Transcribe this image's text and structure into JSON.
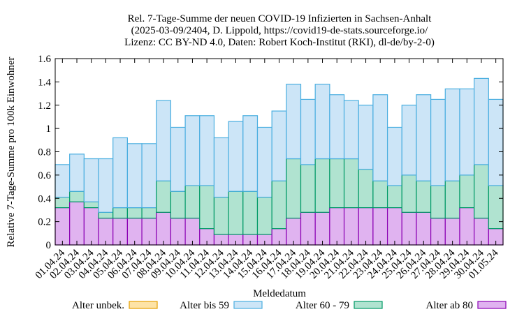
{
  "chart_data": {
    "type": "bar",
    "stacked": true,
    "title": [
      "Rel. 7-Tage-Summe der neuen COVID-19 Infizierten in Sachsen-Anhalt",
      "(2025-03-09/2404, D. Lippold, https://covid19-de-stats.sourceforge.io/",
      "Lizenz: CC BY-ND 4.0, Daten: Robert Koch-Institut (RKI), dl-de/by-2-0)"
    ],
    "xlabel": "Meldedatum",
    "ylabel": "Relative 7-Tage-Summe pro 100k Einwohner",
    "ylim": [
      0,
      1.6
    ],
    "yticks": [
      "0",
      "0.2",
      "0.4",
      "0.6",
      "0.8",
      "1",
      "1.2",
      "1.4",
      "1.6"
    ],
    "grid": false,
    "legend_position": "bottom",
    "categories": [
      "01.04.24",
      "02.04.24",
      "03.04.24",
      "04.04.24",
      "05.04.24",
      "06.04.24",
      "07.04.24",
      "08.04.24",
      "09.04.24",
      "10.04.24",
      "11.04.24",
      "12.04.24",
      "13.04.24",
      "14.04.24",
      "15.04.24",
      "16.04.24",
      "17.04.24",
      "18.04.24",
      "19.04.24",
      "20.04.24",
      "21.04.24",
      "22.04.24",
      "23.04.24",
      "24.04.24",
      "25.04.24",
      "26.04.24",
      "27.04.24",
      "28.04.24",
      "29.04.24",
      "30.04.24",
      "01.05.24"
    ],
    "series": [
      {
        "name": "Alter ab 80",
        "fill": "#e0b3f0",
        "stroke": "#8b00b3",
        "values": [
          0.32,
          0.37,
          0.32,
          0.23,
          0.23,
          0.23,
          0.23,
          0.28,
          0.23,
          0.23,
          0.14,
          0.09,
          0.09,
          0.09,
          0.09,
          0.14,
          0.23,
          0.28,
          0.28,
          0.32,
          0.32,
          0.32,
          0.32,
          0.32,
          0.28,
          0.28,
          0.23,
          0.23,
          0.32,
          0.23,
          0.14
        ]
      },
      {
        "name": "Alter 60 - 79",
        "fill": "#b0e3d0",
        "stroke": "#009966",
        "values": [
          0.09,
          0.09,
          0.05,
          0.05,
          0.09,
          0.09,
          0.09,
          0.27,
          0.23,
          0.28,
          0.37,
          0.32,
          0.37,
          0.37,
          0.32,
          0.41,
          0.51,
          0.41,
          0.46,
          0.42,
          0.42,
          0.33,
          0.23,
          0.19,
          0.32,
          0.27,
          0.28,
          0.32,
          0.28,
          0.46,
          0.37
        ]
      },
      {
        "name": "Alter bis 59",
        "fill": "#cce5f7",
        "stroke": "#4aaee0",
        "values": [
          0.28,
          0.32,
          0.37,
          0.46,
          0.6,
          0.55,
          0.55,
          0.69,
          0.55,
          0.6,
          0.6,
          0.51,
          0.6,
          0.65,
          0.6,
          0.6,
          0.64,
          0.56,
          0.64,
          0.55,
          0.5,
          0.55,
          0.74,
          0.5,
          0.6,
          0.74,
          0.74,
          0.79,
          0.74,
          0.74,
          0.74
        ]
      },
      {
        "name": "Alter unbek.",
        "fill": "#fde3a6",
        "stroke": "#e69f00",
        "values": [
          0,
          0,
          0,
          0,
          0,
          0,
          0,
          0,
          0,
          0,
          0,
          0,
          0,
          0,
          0,
          0,
          0,
          0,
          0,
          0,
          0,
          0,
          0,
          0,
          0,
          0,
          0,
          0,
          0,
          0,
          0
        ]
      }
    ],
    "legend_order": [
      "Alter unbek.",
      "Alter bis 59",
      "Alter 60 - 79",
      "Alter ab 80"
    ]
  }
}
